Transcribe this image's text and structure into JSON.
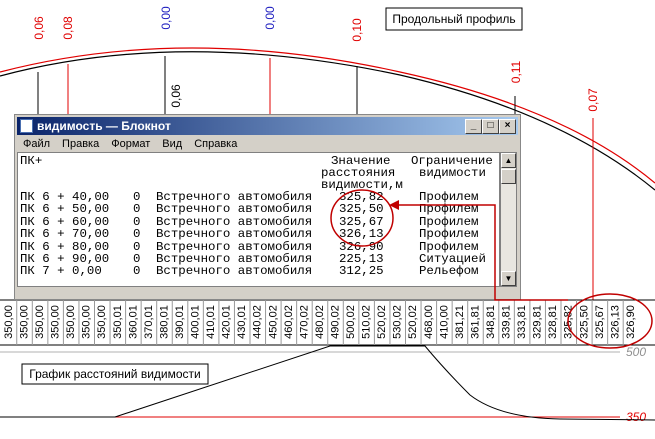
{
  "profile": {
    "title": "Продольный профиль",
    "top_labels": [
      "0,06",
      "0,08",
      "0,00",
      "0,00",
      "0,10",
      "0,11",
      "0,07"
    ],
    "inner_label": "0,06"
  },
  "notepad": {
    "title": "видимость — Блокнот",
    "menu": [
      "Файл",
      "Правка",
      "Формат",
      "Вид",
      "Справка"
    ],
    "header": {
      "station": "ПК+",
      "value": [
        "Значение",
        "расстояния",
        "видимости,м"
      ],
      "restriction": [
        "Ограничение",
        "видимости"
      ]
    },
    "rows": [
      [
        "ПК 6 + 40,00",
        "0",
        "Встречного автомобиля",
        "325,82",
        "Профилем"
      ],
      [
        "ПК 6 + 50,00",
        "0",
        "Встречного автомобиля",
        "325,50",
        "Профилем"
      ],
      [
        "ПК 6 + 60,00",
        "0",
        "Встречного автомобиля",
        "325,67",
        "Профилем"
      ],
      [
        "ПК 6 + 70,00",
        "0",
        "Встречного автомобиля",
        "326,13",
        "Профилем"
      ],
      [
        "ПК 6 + 80,00",
        "0",
        "Встречного автомобиля",
        "326,90",
        "Профилем"
      ],
      [
        "ПК 6 + 90,00",
        "0",
        "Встречного автомобиля",
        "225,13",
        "Ситуацией"
      ],
      [
        "ПК 7 + 0,00",
        "0",
        "Встречного автомобиля",
        "312,25",
        "Рельефом"
      ]
    ]
  },
  "distances": [
    "350,00",
    "350,00",
    "350,00",
    "350,00",
    "350,00",
    "350,00",
    "350,00",
    "350,01",
    "360,01",
    "370,01",
    "380,01",
    "390,01",
    "400,01",
    "410,01",
    "420,01",
    "430,01",
    "440,02",
    "450,02",
    "460,02",
    "470,02",
    "480,02",
    "490,02",
    "500,02",
    "510,02",
    "520,02",
    "530,02",
    "520,02",
    "468,00",
    "410,00",
    "381,21",
    "361,81",
    "348,81",
    "339,81",
    "333,81",
    "329,81",
    "328,81",
    "325,82",
    "325,50",
    "325,67",
    "326,13",
    "326,90"
  ],
  "graph": {
    "title": "График расстояний видимости",
    "level_high": "500",
    "level_low": "350"
  }
}
